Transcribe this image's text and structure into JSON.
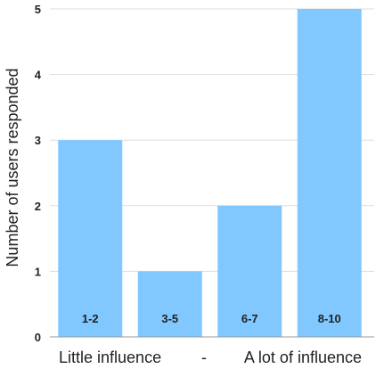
{
  "chart_data": {
    "type": "bar",
    "categories": [
      "1-2",
      "3-5",
      "6-7",
      "8-10"
    ],
    "values": [
      3,
      1,
      2,
      5
    ],
    "title": "",
    "ylabel": "Number of users responded",
    "xlabel_left": "Little influence",
    "xlabel_separator": "-",
    "xlabel_right": "A lot of influence",
    "ylim": [
      0,
      5
    ],
    "yticks": [
      "0",
      "1",
      "2",
      "3",
      "4",
      "5"
    ],
    "grid": true,
    "bar_color": "#80c8ff",
    "grid_color": "#dddddd",
    "axis_color": "#999999"
  }
}
